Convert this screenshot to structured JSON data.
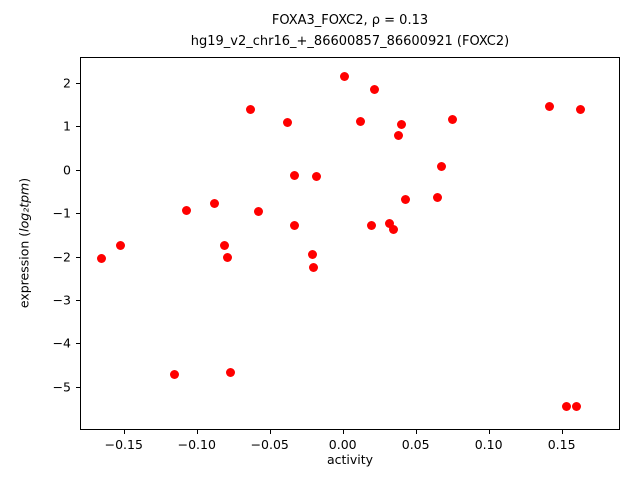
{
  "title": {
    "line1": "FOXA3_FOXC2, ρ = 0.13",
    "line2": "hg19_v2_chr16_+_86600857_86600921 (FOXC2)"
  },
  "axes": {
    "xlabel": "activity",
    "ylabel_prefix": "expression (",
    "ylabel_math": "log₂tpm",
    "ylabel_suffix": ")"
  },
  "chart_data": {
    "type": "scatter",
    "title": "FOXA3_FOXC2, ρ = 0.13",
    "subtitle": "hg19_v2_chr16_+_86600857_86600921 (FOXC2)",
    "xlabel": "activity",
    "ylabel": "expression (log2 tpm)",
    "xlim": [
      -0.18,
      0.19
    ],
    "ylim": [
      -6.0,
      2.6
    ],
    "grid": false,
    "legend": "none",
    "marker_color": "#ff0000",
    "x_ticks": [
      -0.15,
      -0.1,
      -0.05,
      0.0,
      0.05,
      0.1,
      0.15
    ],
    "x_tick_labels": [
      "−0.15",
      "−0.10",
      "−0.05",
      "0.00",
      "0.05",
      "0.10",
      "0.15"
    ],
    "y_ticks": [
      2,
      1,
      0,
      -1,
      -2,
      -3,
      -4,
      -5
    ],
    "y_tick_labels": [
      "2",
      "1",
      "0",
      "−1",
      "−2",
      "−3",
      "−4",
      "−5"
    ],
    "points": [
      [
        -0.165,
        -2.05
      ],
      [
        -0.152,
        -1.75
      ],
      [
        -0.115,
        -4.72
      ],
      [
        -0.107,
        -0.95
      ],
      [
        -0.088,
        -0.78
      ],
      [
        -0.081,
        -1.75
      ],
      [
        -0.079,
        -2.02
      ],
      [
        -0.077,
        -4.68
      ],
      [
        -0.063,
        1.4
      ],
      [
        -0.058,
        -0.97
      ],
      [
        -0.038,
        1.08
      ],
      [
        -0.033,
        -0.13
      ],
      [
        -0.033,
        -1.28
      ],
      [
        -0.021,
        -1.95
      ],
      [
        -0.02,
        -2.25
      ],
      [
        -0.018,
        -0.15
      ],
      [
        0.001,
        2.15
      ],
      [
        0.012,
        1.12
      ],
      [
        0.02,
        -1.28
      ],
      [
        0.022,
        1.86
      ],
      [
        0.032,
        -1.25
      ],
      [
        0.035,
        -1.38
      ],
      [
        0.038,
        0.78
      ],
      [
        0.04,
        1.05
      ],
      [
        0.043,
        -0.68
      ],
      [
        0.065,
        -0.65
      ],
      [
        0.068,
        0.07
      ],
      [
        0.075,
        1.15
      ],
      [
        0.142,
        1.45
      ],
      [
        0.153,
        -5.45
      ],
      [
        0.16,
        -5.45
      ],
      [
        0.163,
        1.4
      ]
    ]
  }
}
